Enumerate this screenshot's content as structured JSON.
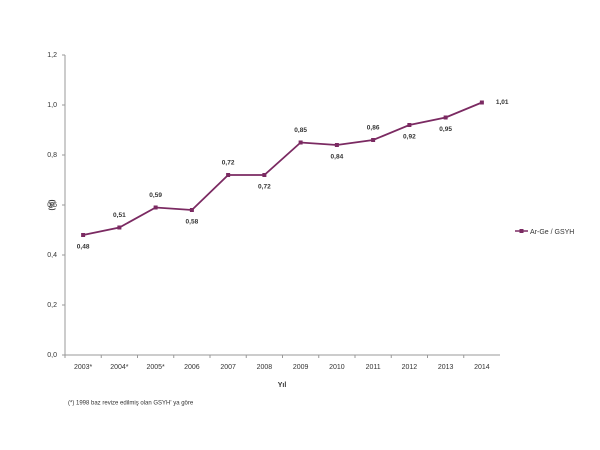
{
  "chart_data": {
    "type": "line",
    "y_label": "(%)",
    "x_label": "Yıl",
    "footnote": "(*) 1998 baz revize edilmiş olan GSYH' ya göre",
    "categories": [
      "2003*",
      "2004*",
      "2005*",
      "2006",
      "2007",
      "2008",
      "2009",
      "2010",
      "2011",
      "2012",
      "2013",
      "2014"
    ],
    "series": [
      {
        "name": "Ar-Ge / GSYH",
        "color": "#7b2a62",
        "values": [
          0.48,
          0.51,
          0.59,
          0.58,
          0.72,
          0.72,
          0.85,
          0.84,
          0.86,
          0.92,
          0.95,
          1.01
        ],
        "value_labels": [
          "0,48",
          "0,51",
          "0,59",
          "0,58",
          "0,72",
          "0,72",
          "0,85",
          "0,84",
          "0,86",
          "0,92",
          "0,95",
          "1,01"
        ]
      }
    ],
    "ylim": [
      0,
      1.2
    ],
    "yticks": [
      {
        "value": 0,
        "label": "0,0"
      },
      {
        "value": 0.2,
        "label": "0,2"
      },
      {
        "value": 0.4,
        "label": "0,4"
      },
      {
        "value": 0.6,
        "label": "0,6"
      },
      {
        "value": 0.8,
        "label": "0,8"
      },
      {
        "value": 1.0,
        "label": "1,0"
      },
      {
        "value": 1.2,
        "label": "1,2"
      }
    ],
    "legend": "right"
  }
}
